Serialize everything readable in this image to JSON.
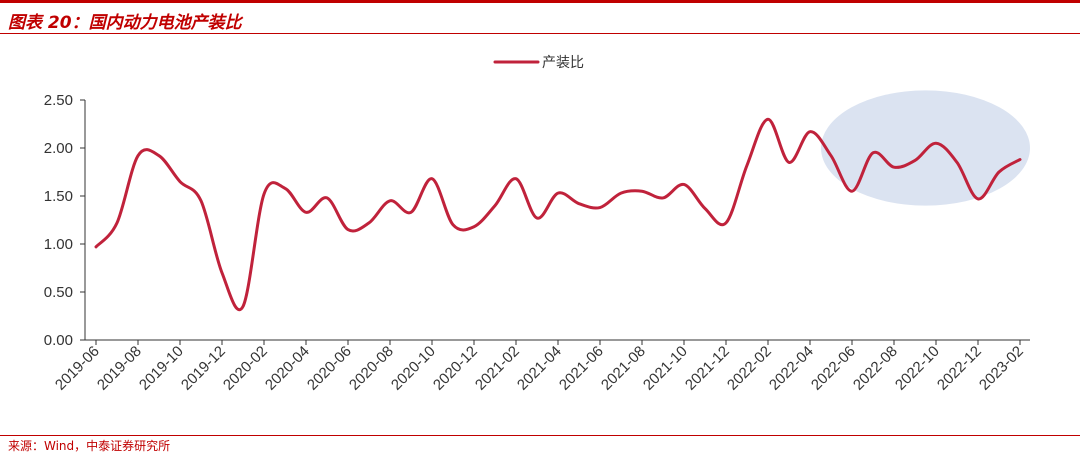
{
  "header": {
    "title": "图表 20：国内动力电池产装比"
  },
  "footer": {
    "source": "来源：Wind，中泰证券研究所"
  },
  "colors": {
    "series": "#c0223b",
    "highlight": "#dbe3f1",
    "brand": "#c00000",
    "axis": "#333333"
  },
  "chart_data": {
    "type": "line",
    "title": "",
    "xlabel": "",
    "ylabel": "",
    "ylim": [
      0,
      2.5
    ],
    "yticks": [
      "0.00",
      "0.50",
      "1.00",
      "1.50",
      "2.00",
      "2.50"
    ],
    "grid": false,
    "legend": "top-center",
    "x_tick_labels": [
      "2019-06",
      "2019-08",
      "2019-10",
      "2019-12",
      "2020-02",
      "2020-04",
      "2020-06",
      "2020-08",
      "2020-10",
      "2020-12",
      "2021-02",
      "2021-04",
      "2021-06",
      "2021-08",
      "2021-10",
      "2021-12",
      "2022-02",
      "2022-04",
      "2022-06",
      "2022-08",
      "2022-10",
      "2022-12",
      "2023-02"
    ],
    "x": [
      "2019-06",
      "2019-07",
      "2019-08",
      "2019-09",
      "2019-10",
      "2019-11",
      "2019-12",
      "2020-01",
      "2020-02",
      "2020-03",
      "2020-04",
      "2020-05",
      "2020-06",
      "2020-07",
      "2020-08",
      "2020-09",
      "2020-10",
      "2020-11",
      "2020-12",
      "2021-01",
      "2021-02",
      "2021-03",
      "2021-04",
      "2021-05",
      "2021-06",
      "2021-07",
      "2021-08",
      "2021-09",
      "2021-10",
      "2021-11",
      "2021-12",
      "2022-01",
      "2022-02",
      "2022-03",
      "2022-04",
      "2022-05",
      "2022-06",
      "2022-07",
      "2022-08",
      "2022-09",
      "2022-10",
      "2022-11",
      "2022-12",
      "2023-01",
      "2023-02"
    ],
    "series": [
      {
        "name": "产装比",
        "values": [
          0.97,
          1.22,
          1.92,
          1.92,
          1.65,
          1.45,
          0.7,
          0.35,
          1.52,
          1.58,
          1.33,
          1.48,
          1.15,
          1.22,
          1.45,
          1.33,
          1.68,
          1.2,
          1.18,
          1.4,
          1.68,
          1.27,
          1.53,
          1.42,
          1.38,
          1.53,
          1.55,
          1.48,
          1.62,
          1.37,
          1.22,
          1.82,
          2.3,
          1.85,
          2.17,
          1.92,
          1.55,
          1.95,
          1.8,
          1.87,
          2.05,
          1.85,
          1.47,
          1.75,
          1.88
        ]
      }
    ],
    "highlight": {
      "shape": "ellipse",
      "from": "2022-05",
      "to": "2023-02",
      "y_range": [
        1.4,
        2.6
      ]
    }
  }
}
